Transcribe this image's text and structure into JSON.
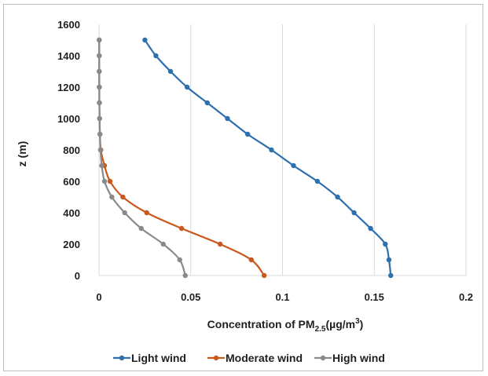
{
  "chart_data": {
    "type": "line",
    "xlabel_main": "Concentration of PM",
    "xlabel_sub": "2.5",
    "xlabel_units_a": "(µg/m",
    "xlabel_sup": "3",
    "xlabel_units_b": ")",
    "ylabel": "z (m)",
    "xlim": [
      0,
      0.2
    ],
    "ylim": [
      0,
      1600
    ],
    "x_ticks": [
      "0",
      "0.05",
      "0.1",
      "0.15",
      "0.2"
    ],
    "y_ticks": [
      "0",
      "200",
      "400",
      "600",
      "800",
      "1000",
      "1200",
      "1400",
      "1600"
    ],
    "grid": "vertical",
    "legend_position": "bottom",
    "colors": {
      "light": "#2e6fad",
      "moderate": "#c9581f",
      "high": "#8a8a8a",
      "grid": "#d9d9d9"
    },
    "series": [
      {
        "name": "Light wind",
        "color": "#2e6fad",
        "points": [
          [
            0.159,
            0
          ],
          [
            0.158,
            100
          ],
          [
            0.156,
            200
          ],
          [
            0.148,
            300
          ],
          [
            0.139,
            400
          ],
          [
            0.13,
            500
          ],
          [
            0.119,
            600
          ],
          [
            0.106,
            700
          ],
          [
            0.094,
            800
          ],
          [
            0.081,
            900
          ],
          [
            0.07,
            1000
          ],
          [
            0.059,
            1100
          ],
          [
            0.048,
            1200
          ],
          [
            0.039,
            1300
          ],
          [
            0.031,
            1400
          ],
          [
            0.025,
            1500
          ]
        ]
      },
      {
        "name": "Moderate wind",
        "color": "#c9581f",
        "points": [
          [
            0.09,
            0
          ],
          [
            0.083,
            100
          ],
          [
            0.066,
            200
          ],
          [
            0.045,
            300
          ],
          [
            0.026,
            400
          ],
          [
            0.013,
            500
          ],
          [
            0.006,
            600
          ],
          [
            0.003,
            700
          ],
          [
            0.001,
            800
          ],
          [
            0.0005,
            900
          ],
          [
            0.0003,
            1000
          ],
          [
            0.0002,
            1100
          ],
          [
            0.0002,
            1200
          ],
          [
            0.0001,
            1300
          ],
          [
            0.0001,
            1400
          ],
          [
            0.0001,
            1500
          ]
        ]
      },
      {
        "name": "High wind",
        "color": "#8a8a8a",
        "points": [
          [
            0.047,
            0
          ],
          [
            0.044,
            100
          ],
          [
            0.035,
            200
          ],
          [
            0.023,
            300
          ],
          [
            0.014,
            400
          ],
          [
            0.007,
            500
          ],
          [
            0.003,
            600
          ],
          [
            0.0015,
            700
          ],
          [
            0.0008,
            800
          ],
          [
            0.0005,
            900
          ],
          [
            0.0003,
            1000
          ],
          [
            0.0002,
            1100
          ],
          [
            0.0001,
            1200
          ],
          [
            0.0001,
            1300
          ],
          [
            0.0001,
            1400
          ],
          [
            0.0001,
            1500
          ]
        ]
      }
    ]
  }
}
